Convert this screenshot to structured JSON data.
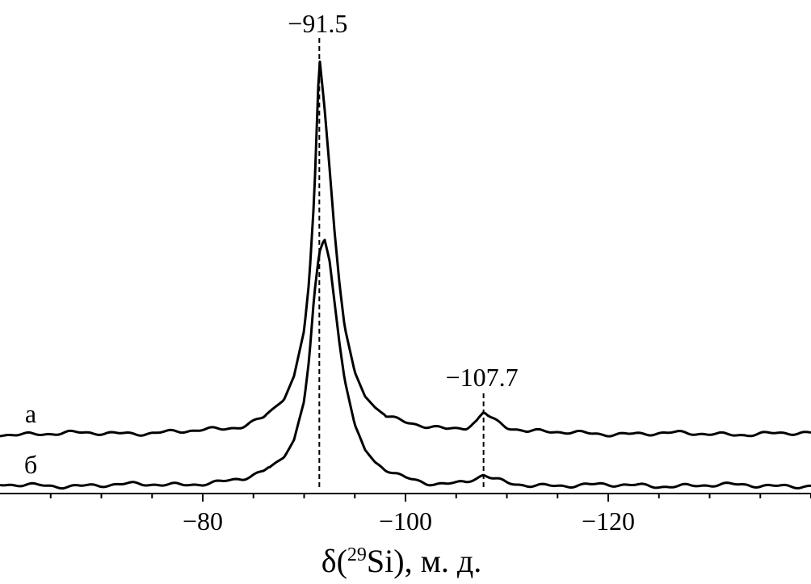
{
  "chart_data": {
    "type": "line",
    "xlabel_prefix": "δ(",
    "xlabel_sup": "29",
    "xlabel_suffix": "Si), м. д.",
    "xlim": [
      -60,
      -140
    ],
    "x_ticks": [
      -80,
      -100,
      -120
    ],
    "x_tick_labels": [
      "−80",
      "−100",
      "−120"
    ],
    "minor_tick_step": 5,
    "grid": false,
    "series": [
      {
        "name": "а",
        "x": [
          -60,
          -66,
          -72,
          -78,
          -82,
          -84,
          -86,
          -88,
          -89,
          -90,
          -90.5,
          -91,
          -91.5,
          -92,
          -92.5,
          -93,
          -93.5,
          -94,
          -95,
          -96,
          -97,
          -98,
          -100,
          -102,
          -104,
          -105,
          -106,
          -107,
          -107.7,
          -108.5,
          -110,
          -112,
          -116,
          -120,
          -126,
          -132,
          -138,
          -140
        ],
        "y": [
          0.0,
          0.0,
          0.002,
          0.005,
          0.012,
          0.022,
          0.045,
          0.09,
          0.15,
          0.27,
          0.4,
          0.62,
          0.99,
          0.86,
          0.7,
          0.53,
          0.39,
          0.28,
          0.16,
          0.1,
          0.07,
          0.05,
          0.03,
          0.018,
          0.01,
          0.012,
          0.017,
          0.035,
          0.057,
          0.042,
          0.02,
          0.006,
          0.002,
          0.001,
          0.0,
          0.0,
          0.0,
          0.0
        ]
      },
      {
        "name": "б",
        "x": [
          -60,
          -66,
          -72,
          -78,
          -82,
          -84,
          -86,
          -88,
          -89,
          -90,
          -90.5,
          -91,
          -91.5,
          -92,
          -92.5,
          -93,
          -93.5,
          -94,
          -95,
          -96,
          -97,
          -98,
          -100,
          -102,
          -104,
          -105,
          -106,
          -107,
          -107.7,
          -108.5,
          -110,
          -112,
          -116,
          -120,
          -126,
          -132,
          -138,
          -140
        ],
        "y": [
          0.0,
          0.0,
          0.001,
          0.004,
          0.01,
          0.018,
          0.038,
          0.08,
          0.13,
          0.24,
          0.36,
          0.54,
          0.66,
          0.7,
          0.64,
          0.52,
          0.4,
          0.3,
          0.17,
          0.1,
          0.065,
          0.045,
          0.022,
          0.01,
          0.006,
          0.006,
          0.01,
          0.02,
          0.028,
          0.018,
          0.006,
          0.002,
          0.001,
          0.0,
          0.0,
          0.0,
          0.0,
          0.0
        ]
      }
    ],
    "annotations": [
      {
        "text": "−91.5",
        "x": -91.5
      },
      {
        "text": "−107.7",
        "x": -107.7
      }
    ]
  }
}
